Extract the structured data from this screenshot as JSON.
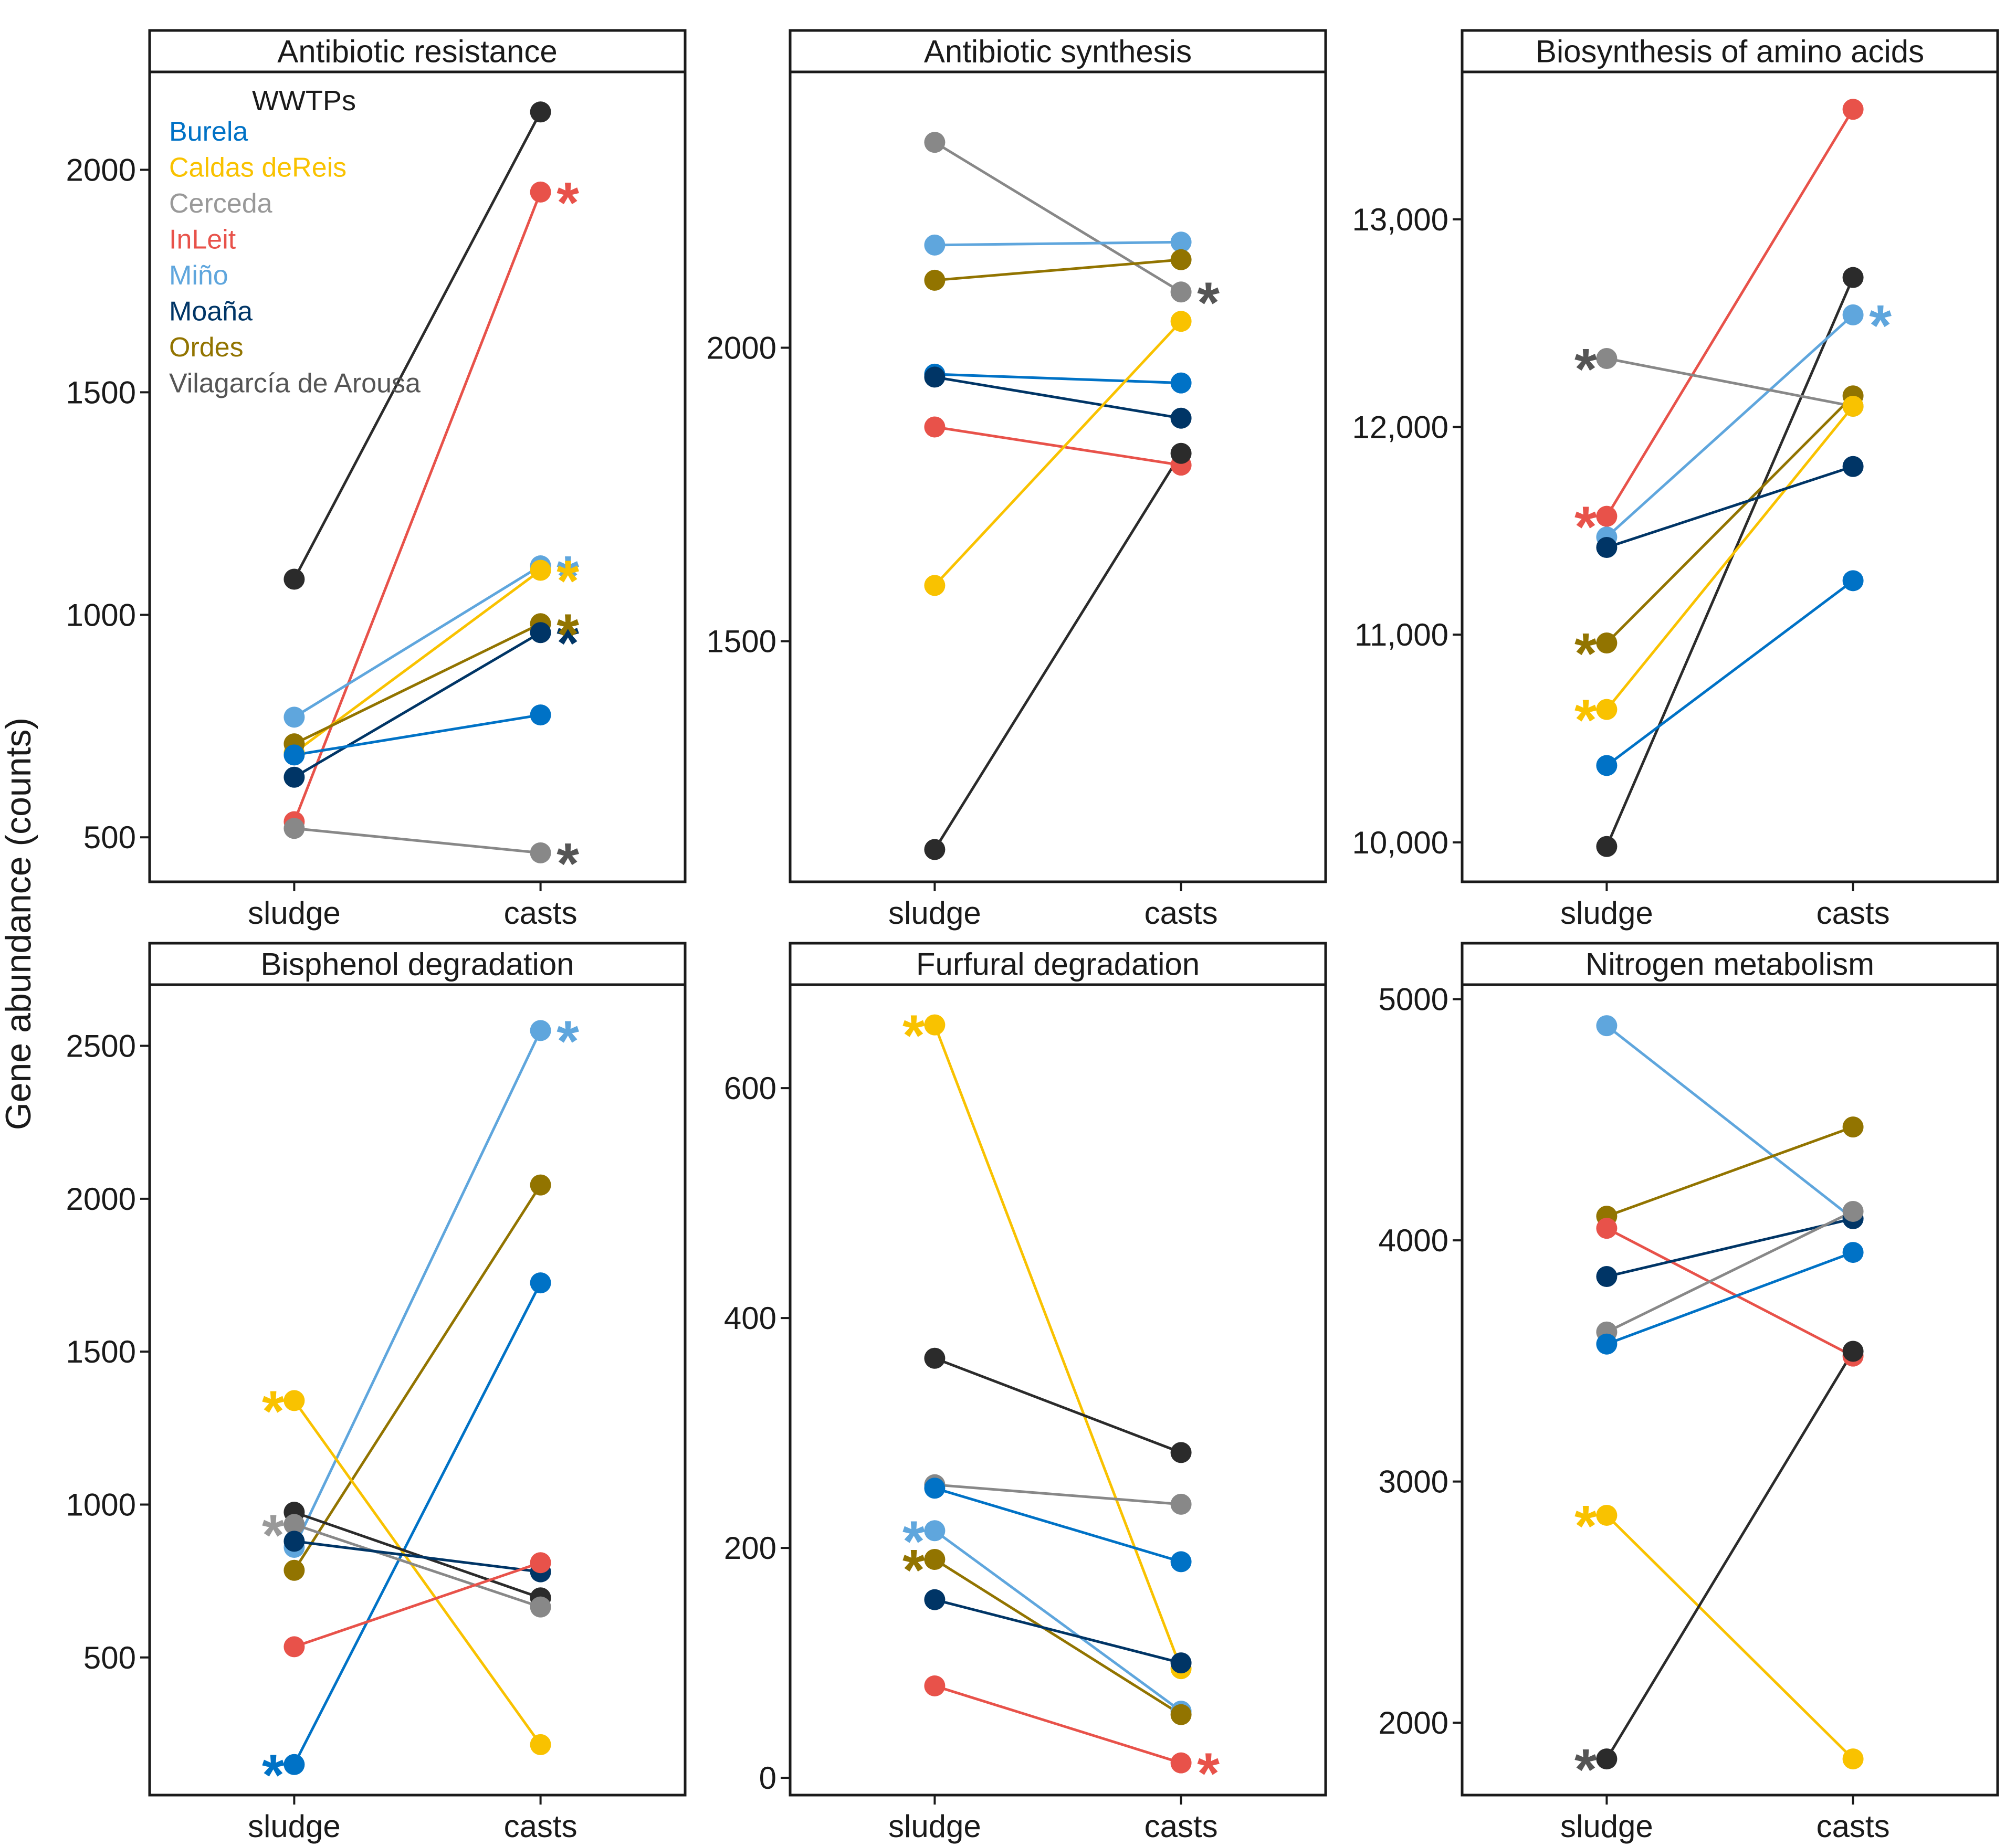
{
  "chart_data": {
    "type": "line",
    "ylabel": "Gene abundance (counts)",
    "categories": [
      "sludge",
      "casts"
    ],
    "legend": {
      "title": "WWTPs",
      "placement": "top-left of first panel",
      "entries": [
        {
          "name": "Burela",
          "color": "#0072c6"
        },
        {
          "name": "Caldas deReis",
          "color": "#f9c200"
        },
        {
          "name": "Cerceda",
          "color": "#999999"
        },
        {
          "name": "InLeit",
          "color": "#e8524a"
        },
        {
          "name": "Miño",
          "color": "#5fa6dd"
        },
        {
          "name": "Moaña",
          "color": "#003566"
        },
        {
          "name": "Ordes",
          "color": "#927400"
        },
        {
          "name": "Vilagarcía de Arousa",
          "color": "#555555"
        }
      ]
    },
    "series_colors": {
      "Burela": "#0072c6",
      "Caldas deReis": "#f9c200",
      "Cerceda": "#888888",
      "InLeit": "#e8524a",
      "Miño": "#5fa6dd",
      "Moaña": "#003566",
      "Ordes": "#927400",
      "Vilagarcía de Arousa": "#2b2b2b"
    },
    "panels": [
      {
        "title": "Antibiotic resistance",
        "ylim": [
          400,
          2220
        ],
        "yticks": [
          500,
          1000,
          1500,
          2000
        ],
        "yticklabels": [
          "500",
          "1000",
          "1500",
          "2000"
        ],
        "series": [
          {
            "name": "Vilagarcía de Arousa",
            "values": [
              1080,
              2130
            ]
          },
          {
            "name": "InLeit",
            "values": [
              535,
              1950
            ]
          },
          {
            "name": "Miño",
            "values": [
              770,
              1110
            ]
          },
          {
            "name": "Caldas deReis",
            "values": [
              690,
              1100
            ]
          },
          {
            "name": "Ordes",
            "values": [
              710,
              980
            ]
          },
          {
            "name": "Moaña",
            "values": [
              635,
              960
            ]
          },
          {
            "name": "Burela",
            "values": [
              685,
              775
            ]
          },
          {
            "name": "Cerceda",
            "values": [
              520,
              465
            ]
          }
        ],
        "asterisks": [
          {
            "series": "Moaña",
            "at": "casts",
            "color": "#003566"
          },
          {
            "series": "InLeit",
            "at": "casts",
            "color": "#e8524a"
          },
          {
            "series": "Miño",
            "at": "casts",
            "color": "#5fa6dd"
          },
          {
            "series": "Caldas deReis",
            "at": "casts",
            "color": "#f9c200"
          },
          {
            "series": "Ordes",
            "at": "casts",
            "color": "#927400"
          },
          {
            "series": "Cerceda",
            "at": "casts",
            "color": "#555555"
          }
        ]
      },
      {
        "title": "Antibiotic synthesis",
        "ylim": [
          1090,
          2470
        ],
        "yticks": [
          1500,
          2000
        ],
        "yticklabels": [
          "1500",
          "2000"
        ],
        "series": [
          {
            "name": "Cerceda",
            "values": [
              2350,
              2095
            ]
          },
          {
            "name": "Miño",
            "values": [
              2175,
              2180
            ]
          },
          {
            "name": "Ordes",
            "values": [
              2115,
              2150
            ]
          },
          {
            "name": "Burela",
            "values": [
              1955,
              1940
            ]
          },
          {
            "name": "Moaña",
            "values": [
              1950,
              1880
            ]
          },
          {
            "name": "InLeit",
            "values": [
              1865,
              1800
            ]
          },
          {
            "name": "Caldas deReis",
            "values": [
              1595,
              2045
            ]
          },
          {
            "name": "Vilagarcía de Arousa",
            "values": [
              1145,
              1820
            ]
          }
        ],
        "asterisks": [
          {
            "series": "Cerceda",
            "at": "casts",
            "color": "#555555"
          }
        ]
      },
      {
        "title": "Biosynthesis of amino acids",
        "ylim": [
          9810,
          13710
        ],
        "yticks": [
          10000,
          11000,
          12000,
          13000
        ],
        "yticklabels": [
          "10,000",
          "11,000",
          "12,000",
          "13,000"
        ],
        "series": [
          {
            "name": "InLeit",
            "values": [
              11570,
              13530
            ]
          },
          {
            "name": "Vilagarcía de Arousa",
            "values": [
              9980,
              12720
            ]
          },
          {
            "name": "Miño",
            "values": [
              11470,
              12540
            ]
          },
          {
            "name": "Cerceda",
            "values": [
              12330,
              12100
            ]
          },
          {
            "name": "Ordes",
            "values": [
              10960,
              12150
            ]
          },
          {
            "name": "Caldas deReis",
            "values": [
              10640,
              12100
            ]
          },
          {
            "name": "Moaña",
            "values": [
              11420,
              11810
            ]
          },
          {
            "name": "Burela",
            "values": [
              10370,
              11260
            ]
          }
        ],
        "asterisks": [
          {
            "series": "Cerceda",
            "at": "sludge",
            "color": "#555555"
          },
          {
            "series": "InLeit",
            "at": "sludge",
            "color": "#e8524a"
          },
          {
            "series": "Ordes",
            "at": "sludge",
            "color": "#927400"
          },
          {
            "series": "Caldas deReis",
            "at": "sludge",
            "color": "#f9c200"
          },
          {
            "series": "Miño",
            "at": "casts",
            "color": "#5fa6dd"
          }
        ]
      },
      {
        "title": "Bisphenol degradation",
        "ylim": [
          50,
          2700
        ],
        "yticks": [
          500,
          1000,
          1500,
          2000,
          2500
        ],
        "yticklabels": [
          "500",
          "1000",
          "1500",
          "2000",
          "2500"
        ],
        "series": [
          {
            "name": "Miño",
            "values": [
              860,
              2550
            ]
          },
          {
            "name": "Ordes",
            "values": [
              785,
              2045
            ]
          },
          {
            "name": "Burela",
            "values": [
              150,
              1725
            ]
          },
          {
            "name": "Caldas deReis",
            "values": [
              1340,
              215
            ]
          },
          {
            "name": "Vilagarcía de Arousa",
            "values": [
              975,
              695
            ]
          },
          {
            "name": "Cerceda",
            "values": [
              935,
              665
            ]
          },
          {
            "name": "Moaña",
            "values": [
              880,
              780
            ]
          },
          {
            "name": "InLeit",
            "values": [
              535,
              810
            ]
          }
        ],
        "asterisks": [
          {
            "series": "Caldas deReis",
            "at": "sludge",
            "color": "#f9c200"
          },
          {
            "series": "Cerceda",
            "at": "sludge",
            "color": "#999999"
          },
          {
            "series": "Burela",
            "at": "sludge",
            "color": "#0072c6"
          },
          {
            "series": "Miño",
            "at": "casts",
            "color": "#5fa6dd"
          }
        ]
      },
      {
        "title": "Furfural degradation",
        "ylim": [
          -15,
          690
        ],
        "yticks": [
          0,
          200,
          400,
          600
        ],
        "yticklabels": [
          "0",
          "200",
          "400",
          "600"
        ],
        "series": [
          {
            "name": "Caldas deReis",
            "values": [
              655,
              95
            ]
          },
          {
            "name": "Vilagarcía de Arousa",
            "values": [
              365,
              283
            ]
          },
          {
            "name": "Cerceda",
            "values": [
              255,
              238
            ]
          },
          {
            "name": "Burela",
            "values": [
              252,
              188
            ]
          },
          {
            "name": "Miño",
            "values": [
              215,
              58
            ]
          },
          {
            "name": "Ordes",
            "values": [
              190,
              55
            ]
          },
          {
            "name": "Moaña",
            "values": [
              155,
              100
            ]
          },
          {
            "name": "InLeit",
            "values": [
              80,
              13
            ]
          }
        ],
        "asterisks": [
          {
            "series": "Caldas deReis",
            "at": "sludge",
            "color": "#f9c200"
          },
          {
            "series": "Miño",
            "at": "sludge",
            "color": "#5fa6dd"
          },
          {
            "series": "Ordes",
            "at": "sludge",
            "color": "#927400"
          },
          {
            "series": "InLeit",
            "at": "casts",
            "color": "#e8524a"
          }
        ]
      },
      {
        "title": "Nitrogen metabolism",
        "ylim": [
          1700,
          5060
        ],
        "yticks": [
          2000,
          3000,
          4000,
          5000
        ],
        "yticklabels": [
          "2000",
          "3000",
          "4000",
          "5000"
        ],
        "series": [
          {
            "name": "Miño",
            "values": [
              4890,
              4090
            ]
          },
          {
            "name": "Ordes",
            "values": [
              4100,
              4470
            ]
          },
          {
            "name": "InLeit",
            "values": [
              4050,
              3520
            ]
          },
          {
            "name": "Moaña",
            "values": [
              3850,
              4090
            ]
          },
          {
            "name": "Cerceda",
            "values": [
              3620,
              4120
            ]
          },
          {
            "name": "Burela",
            "values": [
              3570,
              3950
            ]
          },
          {
            "name": "Caldas deReis",
            "values": [
              2860,
              1850
            ]
          },
          {
            "name": "Vilagarcía de Arousa",
            "values": [
              1850,
              3540
            ]
          }
        ],
        "asterisks": [
          {
            "series": "Caldas deReis",
            "at": "sludge",
            "color": "#f9c200"
          },
          {
            "series": "Vilagarcía de Arousa",
            "at": "sludge",
            "color": "#555555"
          }
        ]
      }
    ]
  }
}
